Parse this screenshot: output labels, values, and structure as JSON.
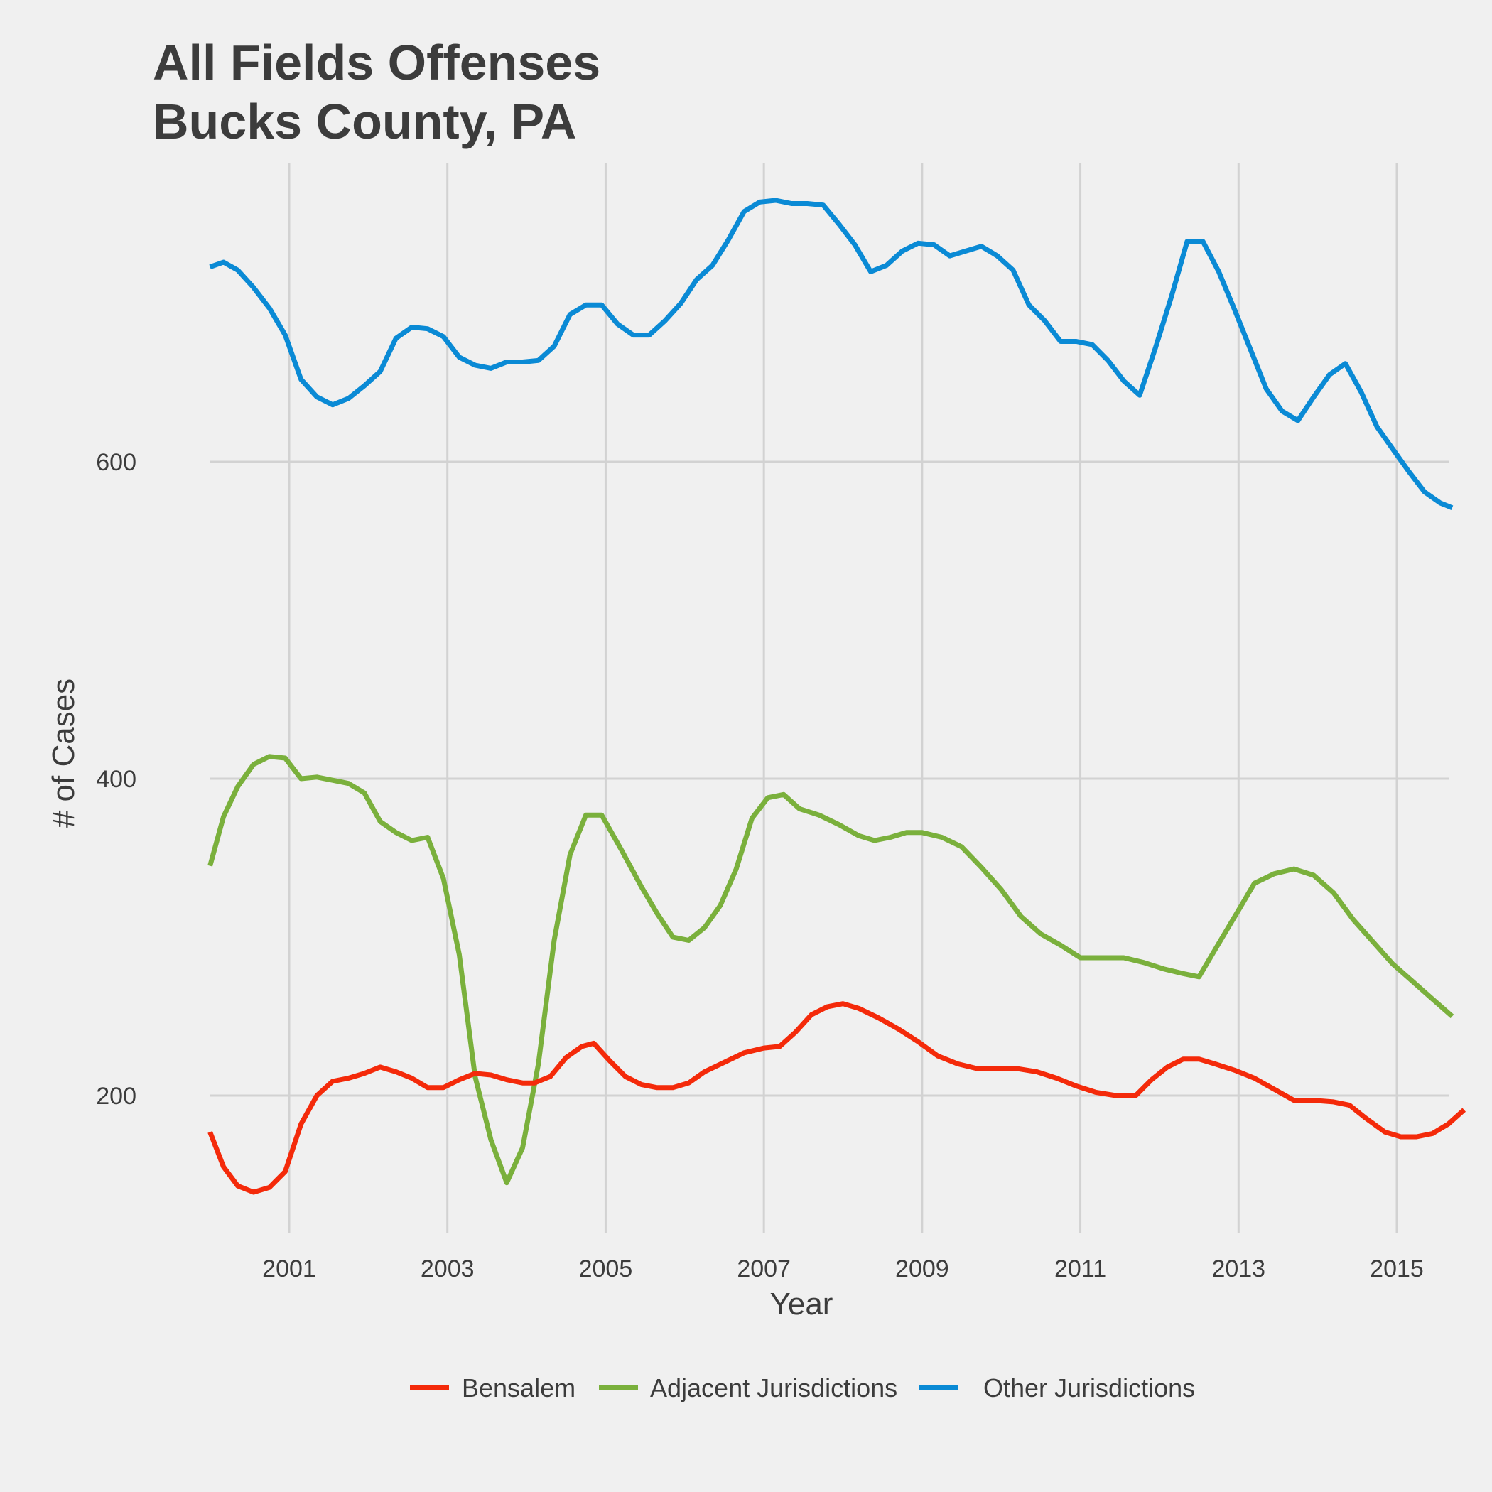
{
  "chart_data": {
    "type": "line",
    "title": [
      "All Fields Offenses",
      "Bucks County, PA"
    ],
    "xlabel": "Year",
    "ylabel": "# of Cases",
    "xlim": [
      1999.9,
      2015.65
    ],
    "ylim": [
      110,
      800
    ],
    "x_ticks": [
      2001,
      2003,
      2005,
      2007,
      2009,
      2011,
      2013,
      2015
    ],
    "y_ticks": [
      200,
      400,
      600
    ],
    "grid": true,
    "legend_position": "bottom",
    "series": [
      {
        "name": "Bensalem",
        "color": "#f42a0a",
        "points": [
          [
            2000.0,
            177
          ],
          [
            2000.17,
            155
          ],
          [
            2000.35,
            143
          ],
          [
            2000.55,
            139
          ],
          [
            2000.75,
            142
          ],
          [
            2000.95,
            152
          ],
          [
            2001.15,
            182
          ],
          [
            2001.35,
            200
          ],
          [
            2001.55,
            209
          ],
          [
            2001.75,
            211
          ],
          [
            2001.95,
            214
          ],
          [
            2002.15,
            218
          ],
          [
            2002.35,
            215
          ],
          [
            2002.55,
            211
          ],
          [
            2002.75,
            205
          ],
          [
            2002.95,
            205
          ],
          [
            2003.15,
            210
          ],
          [
            2003.35,
            214
          ],
          [
            2003.55,
            213
          ],
          [
            2003.75,
            210
          ],
          [
            2003.95,
            208
          ],
          [
            2004.1,
            208
          ],
          [
            2004.3,
            212
          ],
          [
            2004.5,
            224
          ],
          [
            2004.7,
            231
          ],
          [
            2004.85,
            233
          ],
          [
            2005.05,
            222
          ],
          [
            2005.25,
            212
          ],
          [
            2005.45,
            207
          ],
          [
            2005.65,
            205
          ],
          [
            2005.85,
            205
          ],
          [
            2006.05,
            208
          ],
          [
            2006.25,
            215
          ],
          [
            2006.5,
            221
          ],
          [
            2006.75,
            227
          ],
          [
            2007.0,
            230
          ],
          [
            2007.2,
            231
          ],
          [
            2007.4,
            240
          ],
          [
            2007.6,
            251
          ],
          [
            2007.8,
            256
          ],
          [
            2008.0,
            258
          ],
          [
            2008.2,
            255
          ],
          [
            2008.45,
            249
          ],
          [
            2008.7,
            242
          ],
          [
            2008.95,
            234
          ],
          [
            2009.2,
            225
          ],
          [
            2009.45,
            220
          ],
          [
            2009.7,
            217
          ],
          [
            2009.95,
            217
          ],
          [
            2010.2,
            217
          ],
          [
            2010.45,
            215
          ],
          [
            2010.7,
            211
          ],
          [
            2010.95,
            206
          ],
          [
            2011.2,
            202
          ],
          [
            2011.45,
            200
          ],
          [
            2011.7,
            200
          ],
          [
            2011.9,
            210
          ],
          [
            2012.1,
            218
          ],
          [
            2012.3,
            223
          ],
          [
            2012.5,
            223
          ],
          [
            2012.7,
            220
          ],
          [
            2012.95,
            216
          ],
          [
            2013.2,
            211
          ],
          [
            2013.45,
            204
          ],
          [
            2013.7,
            197
          ],
          [
            2013.95,
            197
          ],
          [
            2014.2,
            196
          ],
          [
            2014.4,
            194
          ],
          [
            2014.6,
            186
          ],
          [
            2014.85,
            177
          ],
          [
            2015.05,
            174
          ],
          [
            2015.25,
            174
          ],
          [
            2015.45,
            176
          ],
          [
            2015.65,
            182
          ],
          [
            2015.85,
            191
          ]
        ]
      },
      {
        "name": "Adjacent Jurisdictions",
        "color": "#7ab03c",
        "points": [
          [
            2000.0,
            345
          ],
          [
            2000.17,
            376
          ],
          [
            2000.35,
            395
          ],
          [
            2000.55,
            409
          ],
          [
            2000.75,
            414
          ],
          [
            2000.95,
            413
          ],
          [
            2001.15,
            400
          ],
          [
            2001.35,
            401
          ],
          [
            2001.55,
            399
          ],
          [
            2001.75,
            397
          ],
          [
            2001.95,
            391
          ],
          [
            2002.15,
            373
          ],
          [
            2002.35,
            366
          ],
          [
            2002.55,
            361
          ],
          [
            2002.75,
            363
          ],
          [
            2002.95,
            337
          ],
          [
            2003.15,
            289
          ],
          [
            2003.35,
            212
          ],
          [
            2003.55,
            172
          ],
          [
            2003.75,
            145
          ],
          [
            2003.95,
            167
          ],
          [
            2004.15,
            220
          ],
          [
            2004.35,
            298
          ],
          [
            2004.55,
            352
          ],
          [
            2004.75,
            377
          ],
          [
            2004.95,
            377
          ],
          [
            2005.2,
            355
          ],
          [
            2005.45,
            332
          ],
          [
            2005.65,
            315
          ],
          [
            2005.85,
            300
          ],
          [
            2006.05,
            298
          ],
          [
            2006.25,
            306
          ],
          [
            2006.45,
            320
          ],
          [
            2006.65,
            343
          ],
          [
            2006.85,
            375
          ],
          [
            2007.05,
            388
          ],
          [
            2007.25,
            390
          ],
          [
            2007.45,
            381
          ],
          [
            2007.7,
            377
          ],
          [
            2007.95,
            371
          ],
          [
            2008.2,
            364
          ],
          [
            2008.4,
            361
          ],
          [
            2008.6,
            363
          ],
          [
            2008.8,
            366
          ],
          [
            2009.0,
            366
          ],
          [
            2009.25,
            363
          ],
          [
            2009.5,
            357
          ],
          [
            2009.75,
            344
          ],
          [
            2010.0,
            330
          ],
          [
            2010.25,
            313
          ],
          [
            2010.5,
            302
          ],
          [
            2010.75,
            295
          ],
          [
            2011.0,
            287
          ],
          [
            2011.3,
            287
          ],
          [
            2011.55,
            287
          ],
          [
            2011.8,
            284
          ],
          [
            2012.05,
            280
          ],
          [
            2012.3,
            277
          ],
          [
            2012.5,
            275
          ],
          [
            2012.75,
            296
          ],
          [
            2013.0,
            317
          ],
          [
            2013.2,
            334
          ],
          [
            2013.45,
            340
          ],
          [
            2013.7,
            343
          ],
          [
            2013.95,
            339
          ],
          [
            2014.2,
            328
          ],
          [
            2014.45,
            311
          ],
          [
            2014.7,
            297
          ],
          [
            2014.95,
            283
          ],
          [
            2015.2,
            272
          ],
          [
            2015.45,
            261
          ],
          [
            2015.7,
            250
          ]
        ]
      },
      {
        "name": "Other Jurisdictions",
        "color": "#0a8ad5",
        "points": [
          [
            2000.0,
            723
          ],
          [
            2000.17,
            726
          ],
          [
            2000.35,
            721
          ],
          [
            2000.55,
            710
          ],
          [
            2000.75,
            697
          ],
          [
            2000.95,
            680
          ],
          [
            2001.15,
            652
          ],
          [
            2001.35,
            641
          ],
          [
            2001.55,
            636
          ],
          [
            2001.75,
            640
          ],
          [
            2001.95,
            648
          ],
          [
            2002.15,
            657
          ],
          [
            2002.35,
            678
          ],
          [
            2002.55,
            685
          ],
          [
            2002.75,
            684
          ],
          [
            2002.95,
            679
          ],
          [
            2003.15,
            666
          ],
          [
            2003.35,
            661
          ],
          [
            2003.55,
            659
          ],
          [
            2003.75,
            663
          ],
          [
            2003.95,
            663
          ],
          [
            2004.15,
            664
          ],
          [
            2004.35,
            673
          ],
          [
            2004.55,
            693
          ],
          [
            2004.75,
            699
          ],
          [
            2004.95,
            699
          ],
          [
            2005.15,
            687
          ],
          [
            2005.35,
            680
          ],
          [
            2005.55,
            680
          ],
          [
            2005.75,
            689
          ],
          [
            2005.95,
            700
          ],
          [
            2006.15,
            715
          ],
          [
            2006.35,
            724
          ],
          [
            2006.55,
            740
          ],
          [
            2006.75,
            758
          ],
          [
            2006.95,
            764
          ],
          [
            2007.15,
            765
          ],
          [
            2007.35,
            763
          ],
          [
            2007.55,
            763
          ],
          [
            2007.75,
            762
          ],
          [
            2007.95,
            750
          ],
          [
            2008.15,
            737
          ],
          [
            2008.35,
            720
          ],
          [
            2008.55,
            724
          ],
          [
            2008.75,
            733
          ],
          [
            2008.95,
            738
          ],
          [
            2009.15,
            737
          ],
          [
            2009.35,
            730
          ],
          [
            2009.55,
            733
          ],
          [
            2009.75,
            736
          ],
          [
            2009.95,
            730
          ],
          [
            2010.15,
            721
          ],
          [
            2010.35,
            699
          ],
          [
            2010.55,
            689
          ],
          [
            2010.75,
            676
          ],
          [
            2010.95,
            676
          ],
          [
            2011.15,
            674
          ],
          [
            2011.35,
            664
          ],
          [
            2011.55,
            651
          ],
          [
            2011.75,
            642
          ],
          [
            2011.95,
            672
          ],
          [
            2012.15,
            704
          ],
          [
            2012.35,
            739
          ],
          [
            2012.55,
            739
          ],
          [
            2012.75,
            720
          ],
          [
            2012.95,
            696
          ],
          [
            2013.15,
            671
          ],
          [
            2013.35,
            646
          ],
          [
            2013.55,
            632
          ],
          [
            2013.75,
            626
          ],
          [
            2013.95,
            641
          ],
          [
            2014.15,
            655
          ],
          [
            2014.35,
            662
          ],
          [
            2014.55,
            644
          ],
          [
            2014.75,
            622
          ],
          [
            2014.95,
            608
          ],
          [
            2015.15,
            594
          ],
          [
            2015.35,
            581
          ],
          [
            2015.55,
            574
          ],
          [
            2015.7,
            571
          ]
        ]
      }
    ]
  }
}
